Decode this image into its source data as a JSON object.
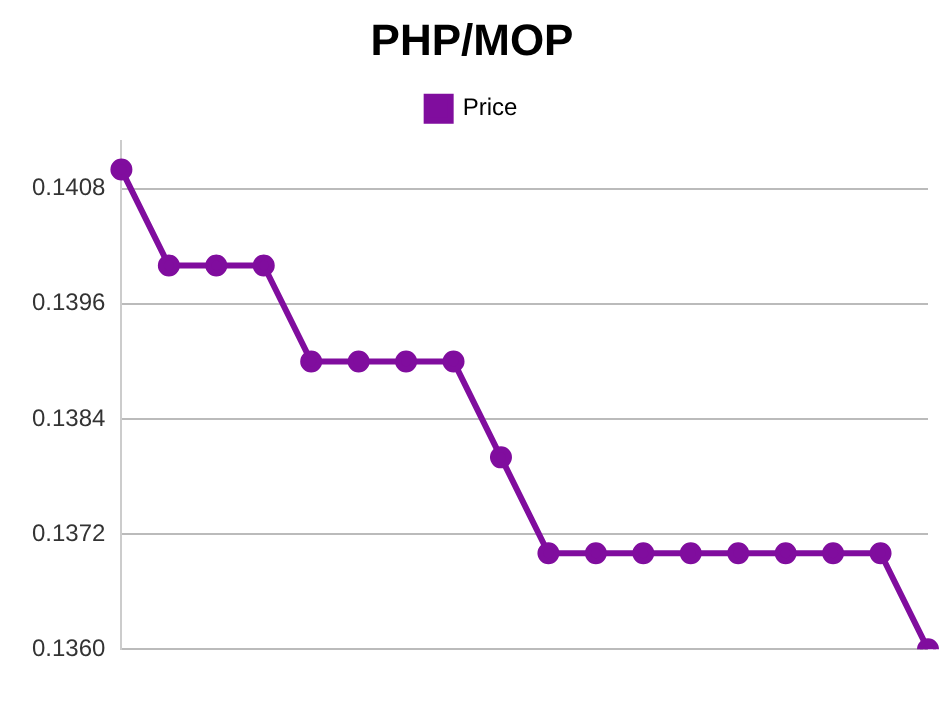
{
  "chart_data": {
    "type": "line",
    "title": "PHP/MOP",
    "categories": [
      null,
      null,
      null,
      null,
      null,
      null,
      null,
      null,
      null,
      null,
      null,
      null,
      null,
      null,
      null,
      null,
      null,
      null
    ],
    "series": [
      {
        "name": "Price",
        "color": "#800d9e",
        "values": [
          0.141,
          0.14,
          0.14,
          0.14,
          0.139,
          0.139,
          0.139,
          0.139,
          0.138,
          0.137,
          0.137,
          0.137,
          0.137,
          0.137,
          0.137,
          0.137,
          0.137,
          0.136
        ]
      }
    ],
    "ylim": [
      0.136,
      0.1413
    ],
    "yticks": [
      {
        "value": 0.136,
        "label": "0.1360"
      },
      0.1372,
      0.1384,
      0.1396,
      0.1408
    ],
    "grid": "y",
    "legend": "top",
    "marker": "circle",
    "line_style": "solid"
  }
}
